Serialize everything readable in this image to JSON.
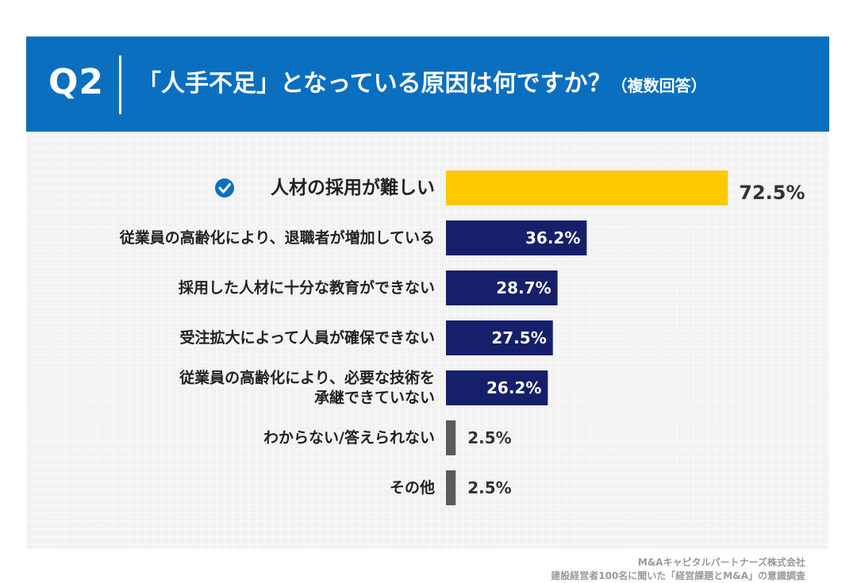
{
  "header": {
    "q_number": "Q2",
    "question": "「人手不足」となっている原因は何ですか？",
    "note": "（複数回答）"
  },
  "chart_data": {
    "type": "bar",
    "orientation": "horizontal",
    "title": "「人手不足」となっている原因は何ですか？（複数回答）",
    "categories": [
      [
        "人材の採用が難しい"
      ],
      [
        "従業員の高齢化により、退職者が増加している"
      ],
      [
        "採用した人材に十分な教育ができない"
      ],
      [
        "受注拡大によって人員が確保できない"
      ],
      [
        "従業員の高齢化により、必要な技術を",
        "承継できていない"
      ],
      [
        "わからない/答えられない"
      ],
      [
        "その他"
      ]
    ],
    "values": [
      72.5,
      36.2,
      28.7,
      27.5,
      26.2,
      2.5,
      2.5
    ],
    "value_labels": [
      "72.5%",
      "36.2%",
      "28.7%",
      "27.5%",
      "26.2%",
      "2.5%",
      "2.5%"
    ],
    "bar_colors": [
      "#ffc800",
      "#16206a",
      "#16206a",
      "#16206a",
      "#16206a",
      "#5a5a5a",
      "#5a5a5a"
    ],
    "highlight_index": 0,
    "highlight_icon": "check-circle-icon",
    "unit": "%",
    "xlim": [
      0,
      100
    ]
  },
  "footer": {
    "company": "M&Aキャピタルパートナーズ株式会社",
    "survey": "建設経営者100名に聞いた「経営課題とM&A」の意識調査"
  }
}
